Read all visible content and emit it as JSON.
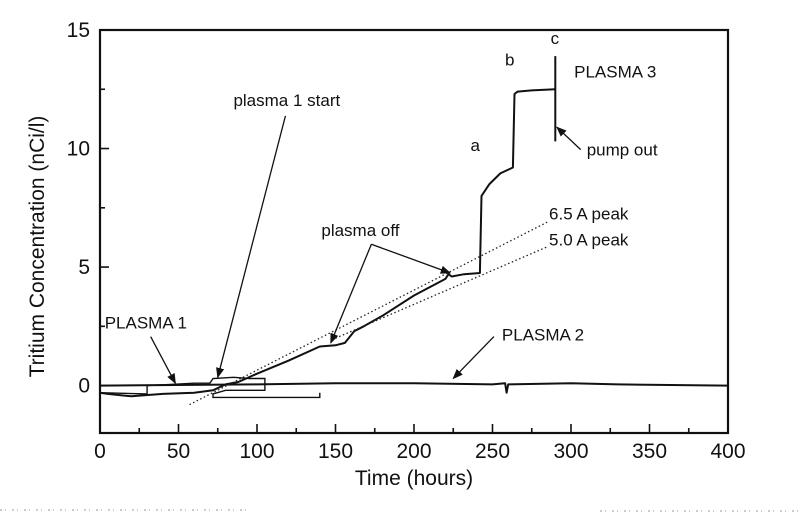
{
  "chart_data": {
    "type": "line",
    "title": "",
    "xlabel": "Time (hours)",
    "ylabel": "Tritium Concentration (nCi/l)",
    "xlim": [
      0,
      400
    ],
    "ylim": [
      -2,
      15
    ],
    "xticks": [
      0,
      50,
      100,
      150,
      200,
      250,
      300,
      350,
      400
    ],
    "xtick_labels": [
      "0",
      "50",
      "100",
      "150",
      "200",
      "250",
      "300",
      "350",
      "400"
    ],
    "xminor": [
      25,
      75,
      125,
      175,
      225,
      275,
      325,
      375
    ],
    "yticks": [
      0,
      5,
      10,
      15
    ],
    "ytick_labels": [
      "0",
      "5",
      "10",
      "15"
    ],
    "yminor": [
      -2,
      2.5,
      7.5,
      12.5
    ],
    "grid": false,
    "series": [
      {
        "name": "PLASMA 3",
        "style": "solid",
        "points": [
          [
            0,
            -0.3
          ],
          [
            5,
            -0.35
          ],
          [
            20,
            -0.45
          ],
          [
            40,
            -0.35
          ],
          [
            60,
            -0.3
          ],
          [
            72,
            -0.2
          ],
          [
            80,
            0.05
          ],
          [
            88,
            0.15
          ],
          [
            100,
            0.5
          ],
          [
            120,
            1.05
          ],
          [
            140,
            1.65
          ],
          [
            150,
            1.7
          ],
          [
            156,
            1.8
          ],
          [
            162,
            2.3
          ],
          [
            168,
            2.5
          ],
          [
            180,
            2.95
          ],
          [
            200,
            3.8
          ],
          [
            220,
            4.5
          ],
          [
            222,
            4.7
          ],
          [
            224,
            4.6
          ],
          [
            232,
            4.7
          ],
          [
            242,
            4.75
          ],
          [
            243,
            8.0
          ],
          [
            248,
            8.5
          ],
          [
            255,
            8.95
          ],
          [
            263,
            9.2
          ],
          [
            264,
            12.3
          ],
          [
            266,
            12.4
          ],
          [
            275,
            12.45
          ],
          [
            290,
            12.5
          ]
        ]
      },
      {
        "name": "PLASMA 3 pump out",
        "style": "solid",
        "points": [
          [
            290,
            13.9
          ],
          [
            290,
            10.3
          ]
        ]
      },
      {
        "name": "PLASMA 2",
        "style": "solid",
        "points": [
          [
            0,
            0
          ],
          [
            100,
            0.05
          ],
          [
            150,
            0.1
          ],
          [
            200,
            0.1
          ],
          [
            250,
            0.05
          ],
          [
            258,
            0.1
          ],
          [
            259,
            -0.3
          ],
          [
            260,
            0.05
          ],
          [
            300,
            0.1
          ],
          [
            330,
            0.05
          ],
          [
            400,
            0
          ]
        ]
      },
      {
        "name": "PLASMA 1",
        "style": "solid",
        "points": [
          [
            0,
            -0.3
          ],
          [
            30,
            -0.35
          ],
          [
            30,
            0
          ],
          [
            45,
            0.05
          ],
          [
            60,
            0.1
          ],
          [
            70,
            0.1
          ],
          [
            72,
            0.3
          ],
          [
            85,
            0.35
          ],
          [
            95,
            0.3
          ],
          [
            105,
            0.3
          ],
          [
            105,
            -0.2
          ],
          [
            80,
            -0.2
          ],
          [
            72,
            -0.35
          ],
          [
            72,
            -0.5
          ],
          [
            140,
            -0.5
          ],
          [
            140,
            -0.3
          ]
        ]
      },
      {
        "name": "6.5 A peak",
        "style": "dotted",
        "points": [
          [
            57,
            -0.8
          ],
          [
            285,
            6.9
          ]
        ]
      },
      {
        "name": "5.0 A peak",
        "style": "dotted",
        "points": [
          [
            150,
            2.0
          ],
          [
            285,
            5.86
          ]
        ]
      }
    ],
    "annotations": [
      {
        "text": "plasma 1 start",
        "x": 85,
        "y": 11.8,
        "arrow_to": [
          75,
          0.35
        ]
      },
      {
        "text": "plasma off",
        "x": 141,
        "y": 6.3,
        "arrow_to": [
          [
            147,
            1.8
          ],
          [
            223,
            4.75
          ]
        ]
      },
      {
        "text": "PLASMA 1",
        "x": 3,
        "y": 2.4,
        "arrow_to": [
          48,
          0.1
        ]
      },
      {
        "text": "PLASMA 2",
        "x": 256,
        "y": 1.9,
        "arrow_to": [
          225,
          0.3
        ]
      },
      {
        "text": "PLASMA 3",
        "x": 302,
        "y": 13.0
      },
      {
        "text": "pump out",
        "x": 310,
        "y": 9.7,
        "arrow_to": [
          291,
          10.9
        ]
      },
      {
        "text": "6.5 A peak",
        "x": 286,
        "y": 7.0
      },
      {
        "text": "5.0 A peak",
        "x": 286,
        "y": 5.9
      },
      {
        "text": "a",
        "x": 236,
        "y": 9.9
      },
      {
        "text": "b",
        "x": 258,
        "y": 13.5
      },
      {
        "text": "c",
        "x": 287,
        "y": 14.4
      }
    ]
  }
}
